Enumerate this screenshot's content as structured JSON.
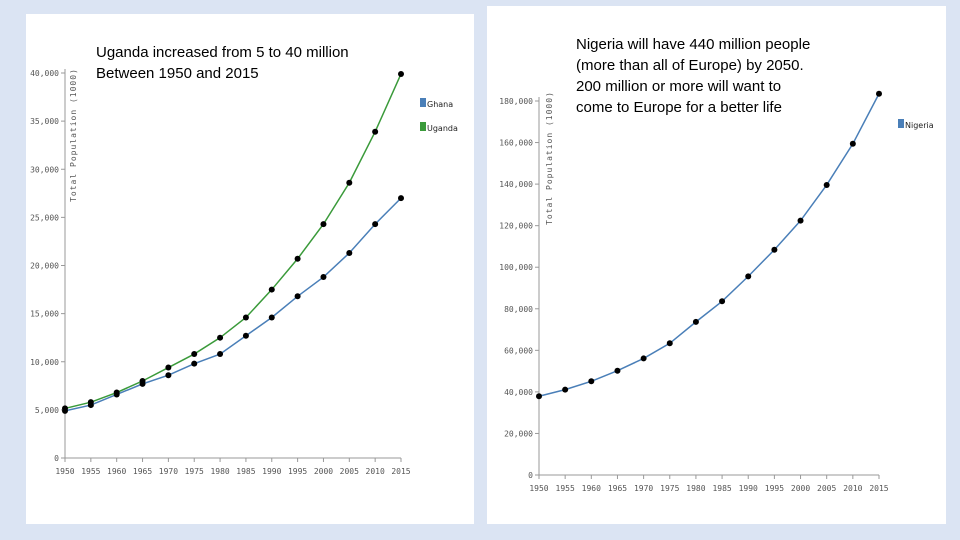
{
  "captions": {
    "left": {
      "line1": "Uganda increased from 5 to 40 million",
      "line2": "Between 1950 and 2015"
    },
    "right": {
      "line1": "Nigeria will have 440 million people",
      "line2": "(more than all of Europe) by 2050.",
      "line3": "200 million or more will want to",
      "line4": "come to Europe for a better life"
    }
  },
  "chart_data": [
    {
      "type": "line",
      "ylabel": "Total Population (1000)",
      "x": [
        1950,
        1955,
        1960,
        1965,
        1970,
        1975,
        1980,
        1985,
        1990,
        1995,
        2000,
        2005,
        2010,
        2015
      ],
      "xticks": [
        "1950",
        "1955",
        "1960",
        "1965",
        "1970",
        "1975",
        "1980",
        "1985",
        "1990",
        "1995",
        "2000",
        "2005",
        "2010",
        "2015"
      ],
      "ylim": [
        0,
        40000
      ],
      "yticks": [
        "0",
        "5,000",
        "10,000",
        "15,000",
        "20,000",
        "25,000",
        "30,000",
        "35,000",
        "40,000"
      ],
      "legend_position": "right",
      "series": [
        {
          "name": "Ghana",
          "color": "#4a7fb8",
          "values": [
            4900,
            5500,
            6600,
            7700,
            8600,
            9800,
            10800,
            12700,
            14600,
            16800,
            18800,
            21300,
            24300,
            27000
          ]
        },
        {
          "name": "Uganda",
          "color": "#3a9a3a",
          "values": [
            5150,
            5800,
            6800,
            8000,
            9400,
            10800,
            12500,
            14600,
            17500,
            20700,
            24300,
            28600,
            33900,
            39900
          ]
        }
      ]
    },
    {
      "type": "line",
      "ylabel": "Total Population (1000)",
      "x": [
        1950,
        1955,
        1960,
        1965,
        1970,
        1975,
        1980,
        1985,
        1990,
        1995,
        2000,
        2005,
        2010,
        2015
      ],
      "xticks": [
        "1950",
        "1955",
        "1960",
        "1965",
        "1970",
        "1975",
        "1980",
        "1985",
        "1990",
        "1995",
        "2000",
        "2005",
        "2010",
        "2015"
      ],
      "ylim": [
        0,
        180000
      ],
      "yticks": [
        "0",
        "20,000",
        "40,000",
        "60,000",
        "80,000",
        "100,000",
        "120,000",
        "140,000",
        "160,000",
        "180,000"
      ],
      "legend_position": "right",
      "series": [
        {
          "name": "Nigeria",
          "color": "#4a7fb8",
          "values": [
            37900,
            41100,
            45100,
            50200,
            56100,
            63400,
            73700,
            83600,
            95600,
            108400,
            122400,
            139600,
            159400,
            183500
          ]
        }
      ]
    }
  ]
}
